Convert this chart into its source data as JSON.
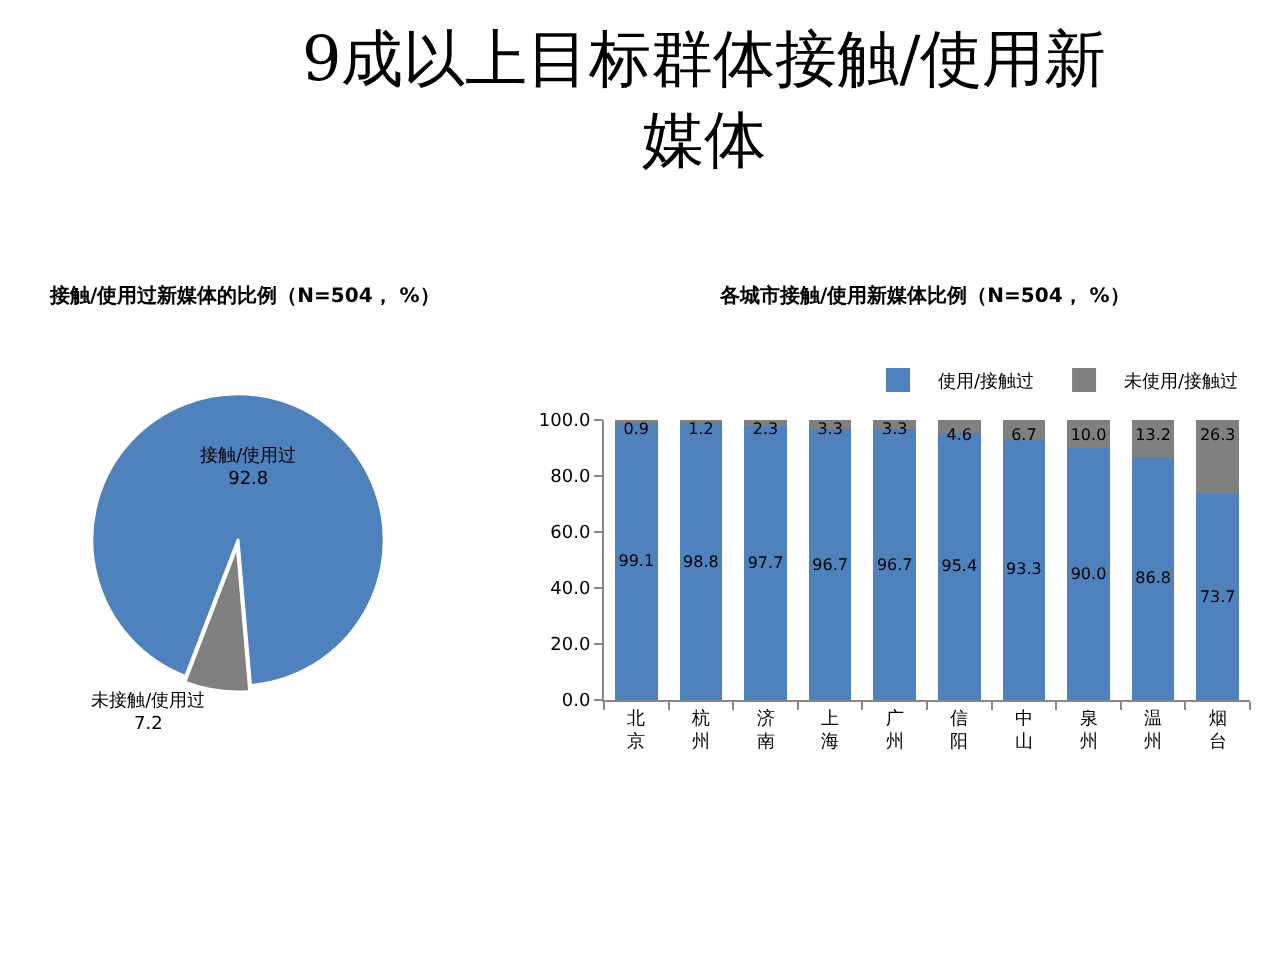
{
  "chart_data": [
    {
      "type": "pie",
      "title": "9成以上目标群体接触/使用新媒体",
      "subtitle": "接触/使用过新媒体的比例（N=504， %）",
      "categories": [
        "接触/使用过",
        "未接触/使用过"
      ],
      "values": [
        92.8,
        7.2
      ],
      "colors": [
        "#4f81bd",
        "#808080"
      ],
      "data_labels": true
    },
    {
      "type": "bar",
      "stacked": true,
      "title": "各城市接触/使用新媒体比例（N=504， %）",
      "categories": [
        "北京",
        "杭州",
        "济南",
        "上海",
        "广州",
        "信阳",
        "中山",
        "泉州",
        "温州",
        "烟台"
      ],
      "series": [
        {
          "name": "使用/接触过",
          "color": "#4f81bd",
          "values": [
            99.1,
            98.8,
            97.7,
            96.7,
            96.7,
            95.4,
            93.3,
            90.0,
            86.8,
            73.7
          ],
          "value_labels": [
            "99.1",
            "98.8",
            "97.7",
            "96.7",
            "96.7",
            "95.4",
            "93.3",
            "90.0",
            "86.8",
            "73.7"
          ]
        },
        {
          "name": "未使用/接触过",
          "color": "#808080",
          "values": [
            0.9,
            1.2,
            2.3,
            3.3,
            3.3,
            4.6,
            6.7,
            10.0,
            13.2,
            26.3
          ],
          "value_labels": [
            "0.9",
            "1.2",
            "2.3",
            "3.3",
            "3.3",
            "4.6",
            "6.7",
            "10.0",
            "13.2",
            "26.3"
          ]
        }
      ],
      "ylim": [
        0,
        100
      ],
      "yticks": [
        {
          "value": 0,
          "label": "0.0"
        },
        {
          "value": 20,
          "label": "20.0"
        },
        {
          "value": 40,
          "label": "40.0"
        },
        {
          "value": 60,
          "label": "60.0"
        },
        {
          "value": 80,
          "label": "80.0"
        },
        {
          "value": 100,
          "label": "100.0"
        }
      ],
      "grid": false,
      "legend": "top right"
    }
  ]
}
